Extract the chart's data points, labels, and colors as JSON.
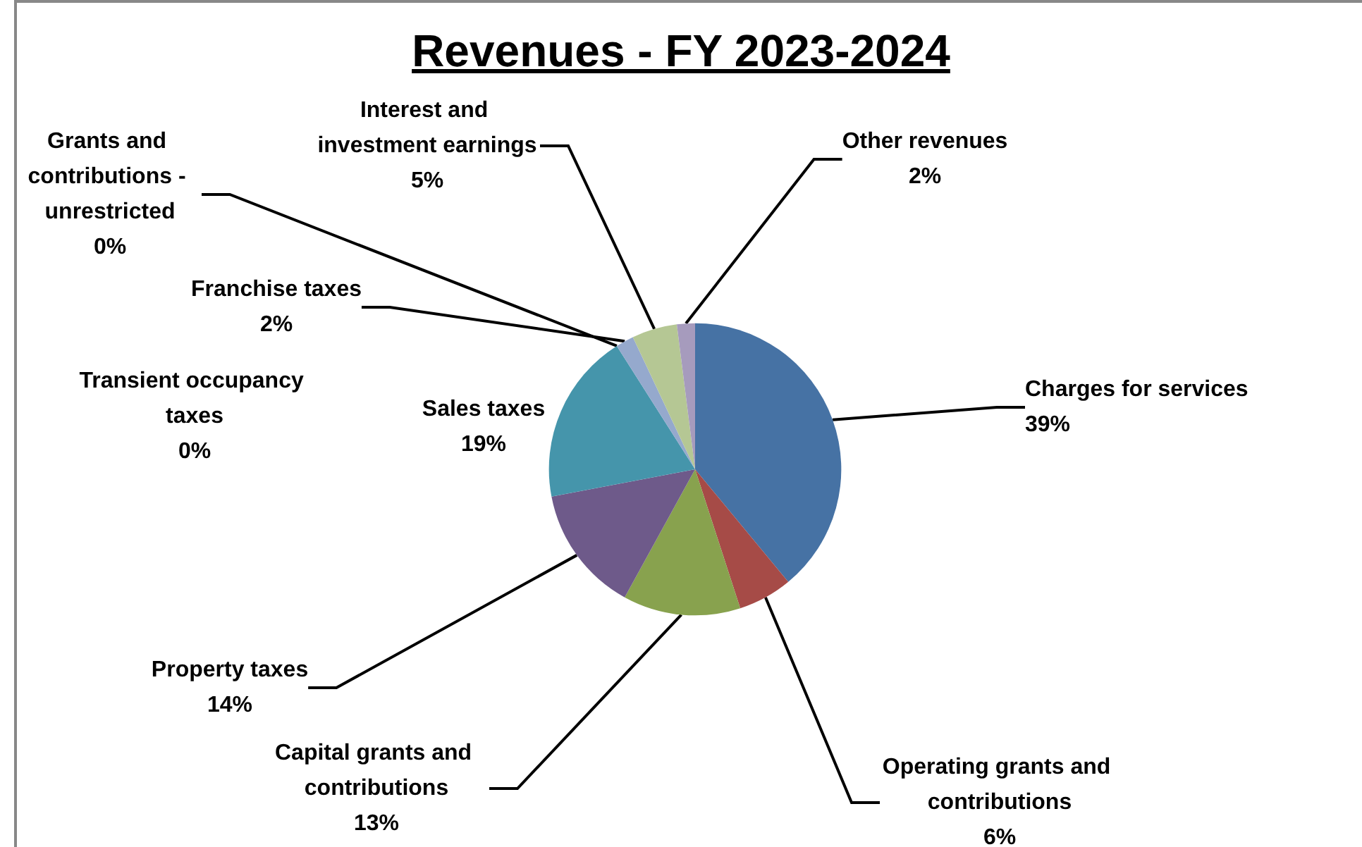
{
  "chart_data": {
    "type": "pie",
    "title": "Revenues - FY 2023-2024",
    "categories": [
      "Charges for services",
      "Operating grants and contributions",
      "Capital grants and contributions",
      "Property taxes",
      "Sales taxes",
      "Transient occupancy taxes",
      "Grants and contributions - unrestricted",
      "Franchise taxes",
      "Interest and investment earnings",
      "Other revenues"
    ],
    "values": [
      39,
      6,
      13,
      14,
      19,
      0,
      0,
      2,
      5,
      2
    ],
    "value_labels": [
      "39%",
      "6%",
      "13%",
      "14%",
      "19%",
      "0%",
      "0%",
      "2%",
      "5%",
      "2%"
    ],
    "colors": [
      "#4672a4",
      "#a64b47",
      "#88a24e",
      "#6e5a8a",
      "#4595ab",
      "#dd8234",
      "#7f9fcf",
      "#95a9cd",
      "#b5c794",
      "#a69bbd"
    ],
    "legend": false
  }
}
